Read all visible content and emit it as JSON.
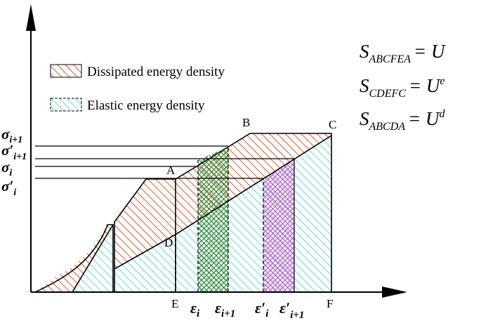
{
  "legend": {
    "dissipated": "Dissipated energy density",
    "elastic": "Elastic energy density"
  },
  "equations": [
    {
      "s": "S",
      "sub": "ABCFEA",
      "rhs": "= U",
      "sup": ""
    },
    {
      "s": "S",
      "sub": "CDEFC",
      "rhs": "= U",
      "sup": "e"
    },
    {
      "s": "S",
      "sub": "ABCDA",
      "rhs": "= U",
      "sup": "d"
    }
  ],
  "points": {
    "A": "A",
    "B": "B",
    "C": "C",
    "D": "D",
    "E": "E",
    "F": "F"
  },
  "y_labels": {
    "sigma_i1": {
      "base": "σ",
      "sub": "i+1"
    },
    "sigma_prime_i1": {
      "base": "σ′",
      "sub": "i+1"
    },
    "sigma_i": {
      "base": "σ",
      "sub": "i"
    },
    "sigma_prime_i": {
      "base": "σ′",
      "sub": "i"
    }
  },
  "x_labels": {
    "eps_i": {
      "base": "ε",
      "sub": "i"
    },
    "eps_i1": {
      "base": "ε",
      "sub": "i+1"
    },
    "eps_prime_i": {
      "base": "ε′",
      "sub": "i"
    },
    "eps_prime_i1": {
      "base": "ε′",
      "sub": "i+1"
    }
  },
  "colors": {
    "dissipated": "#e0582a",
    "elastic": "#5fdcdc",
    "green": "#3a8a3a",
    "purple": "#c060d0",
    "axis": "#000000"
  }
}
